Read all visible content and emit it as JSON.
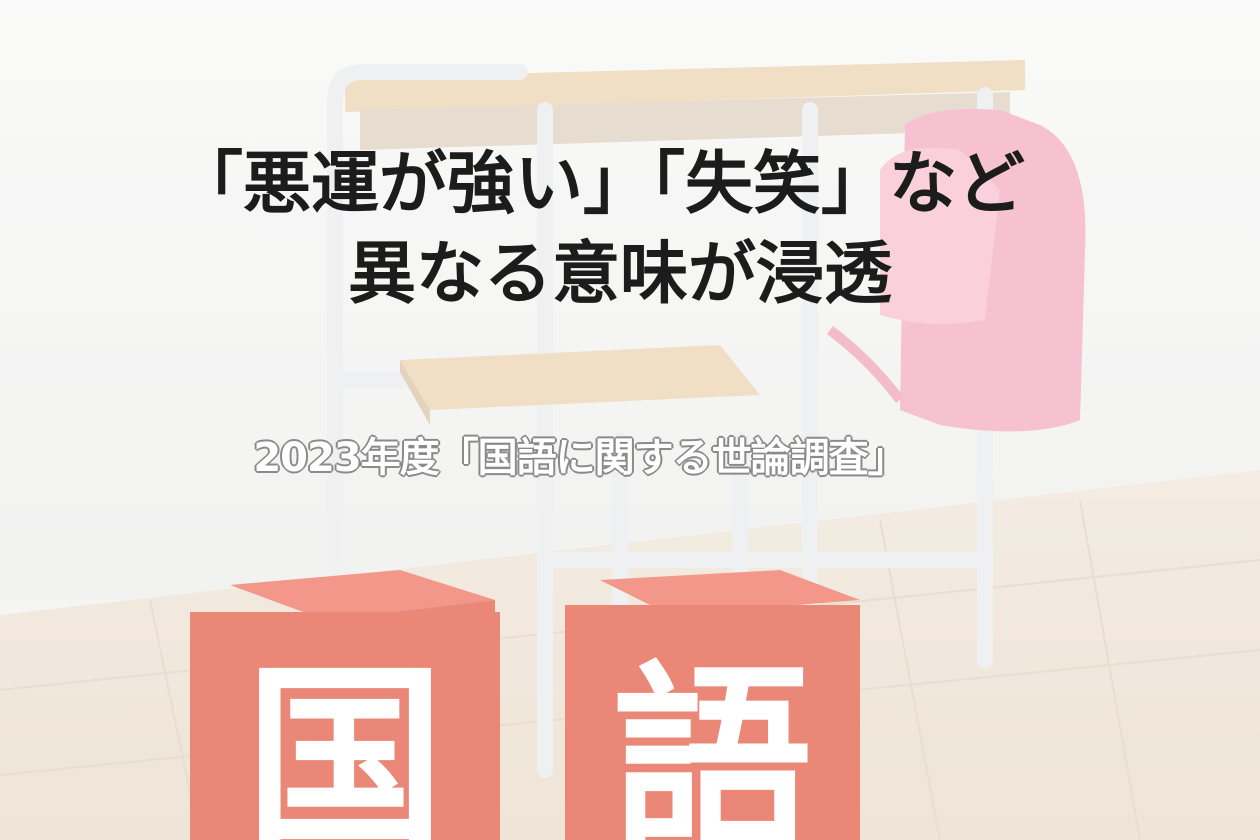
{
  "headline": {
    "line1": "「悪運が強い」「失笑」など",
    "line2": "異なる意味が浸透"
  },
  "subtitle": "2023年度「国語に関する世論調査」",
  "blocks": [
    {
      "char": "国"
    },
    {
      "char": "語"
    }
  ],
  "colors": {
    "headline": "#1c1c1c",
    "subtitle_fill": "#ffffff",
    "subtitle_outline": "#8a8a8a",
    "block_red": "#e2533c",
    "backpack_pink": "#f2a7bd",
    "desk_wood": "#ead2ad",
    "frame_gray": "#e9ebee"
  }
}
